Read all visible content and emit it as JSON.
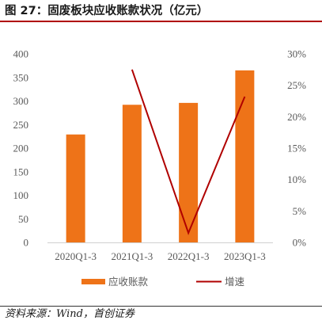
{
  "title": "图 27：固废板块应收账款状况（亿元）",
  "source": "资料来源：Wind，首创证券",
  "colors": {
    "bar": "#ee7318",
    "line": "#b00000",
    "title_rule": "#b00000",
    "axis_text": "#595959"
  },
  "chart_data": {
    "type": "bar",
    "categories": [
      "2020Q1-3",
      "2021Q1-3",
      "2022Q1-3",
      "2023Q1-3"
    ],
    "series": [
      {
        "name": "应收账款",
        "type": "bar",
        "axis": "left",
        "values": [
          229,
          292,
          296,
          365
        ]
      },
      {
        "name": "增速",
        "type": "line",
        "axis": "right",
        "values": [
          null,
          27.5,
          1.5,
          23.2
        ]
      }
    ],
    "y_left": {
      "min": 0,
      "max": 400,
      "step": 50,
      "tick_labels": [
        "0",
        "50",
        "100",
        "150",
        "200",
        "250",
        "300",
        "350",
        "400"
      ]
    },
    "y_right": {
      "min": 0,
      "max": 30,
      "step": 5,
      "tick_labels": [
        "0%",
        "5%",
        "10%",
        "15%",
        "20%",
        "25%",
        "30%"
      ]
    },
    "grid": false,
    "legend_position": "bottom"
  }
}
